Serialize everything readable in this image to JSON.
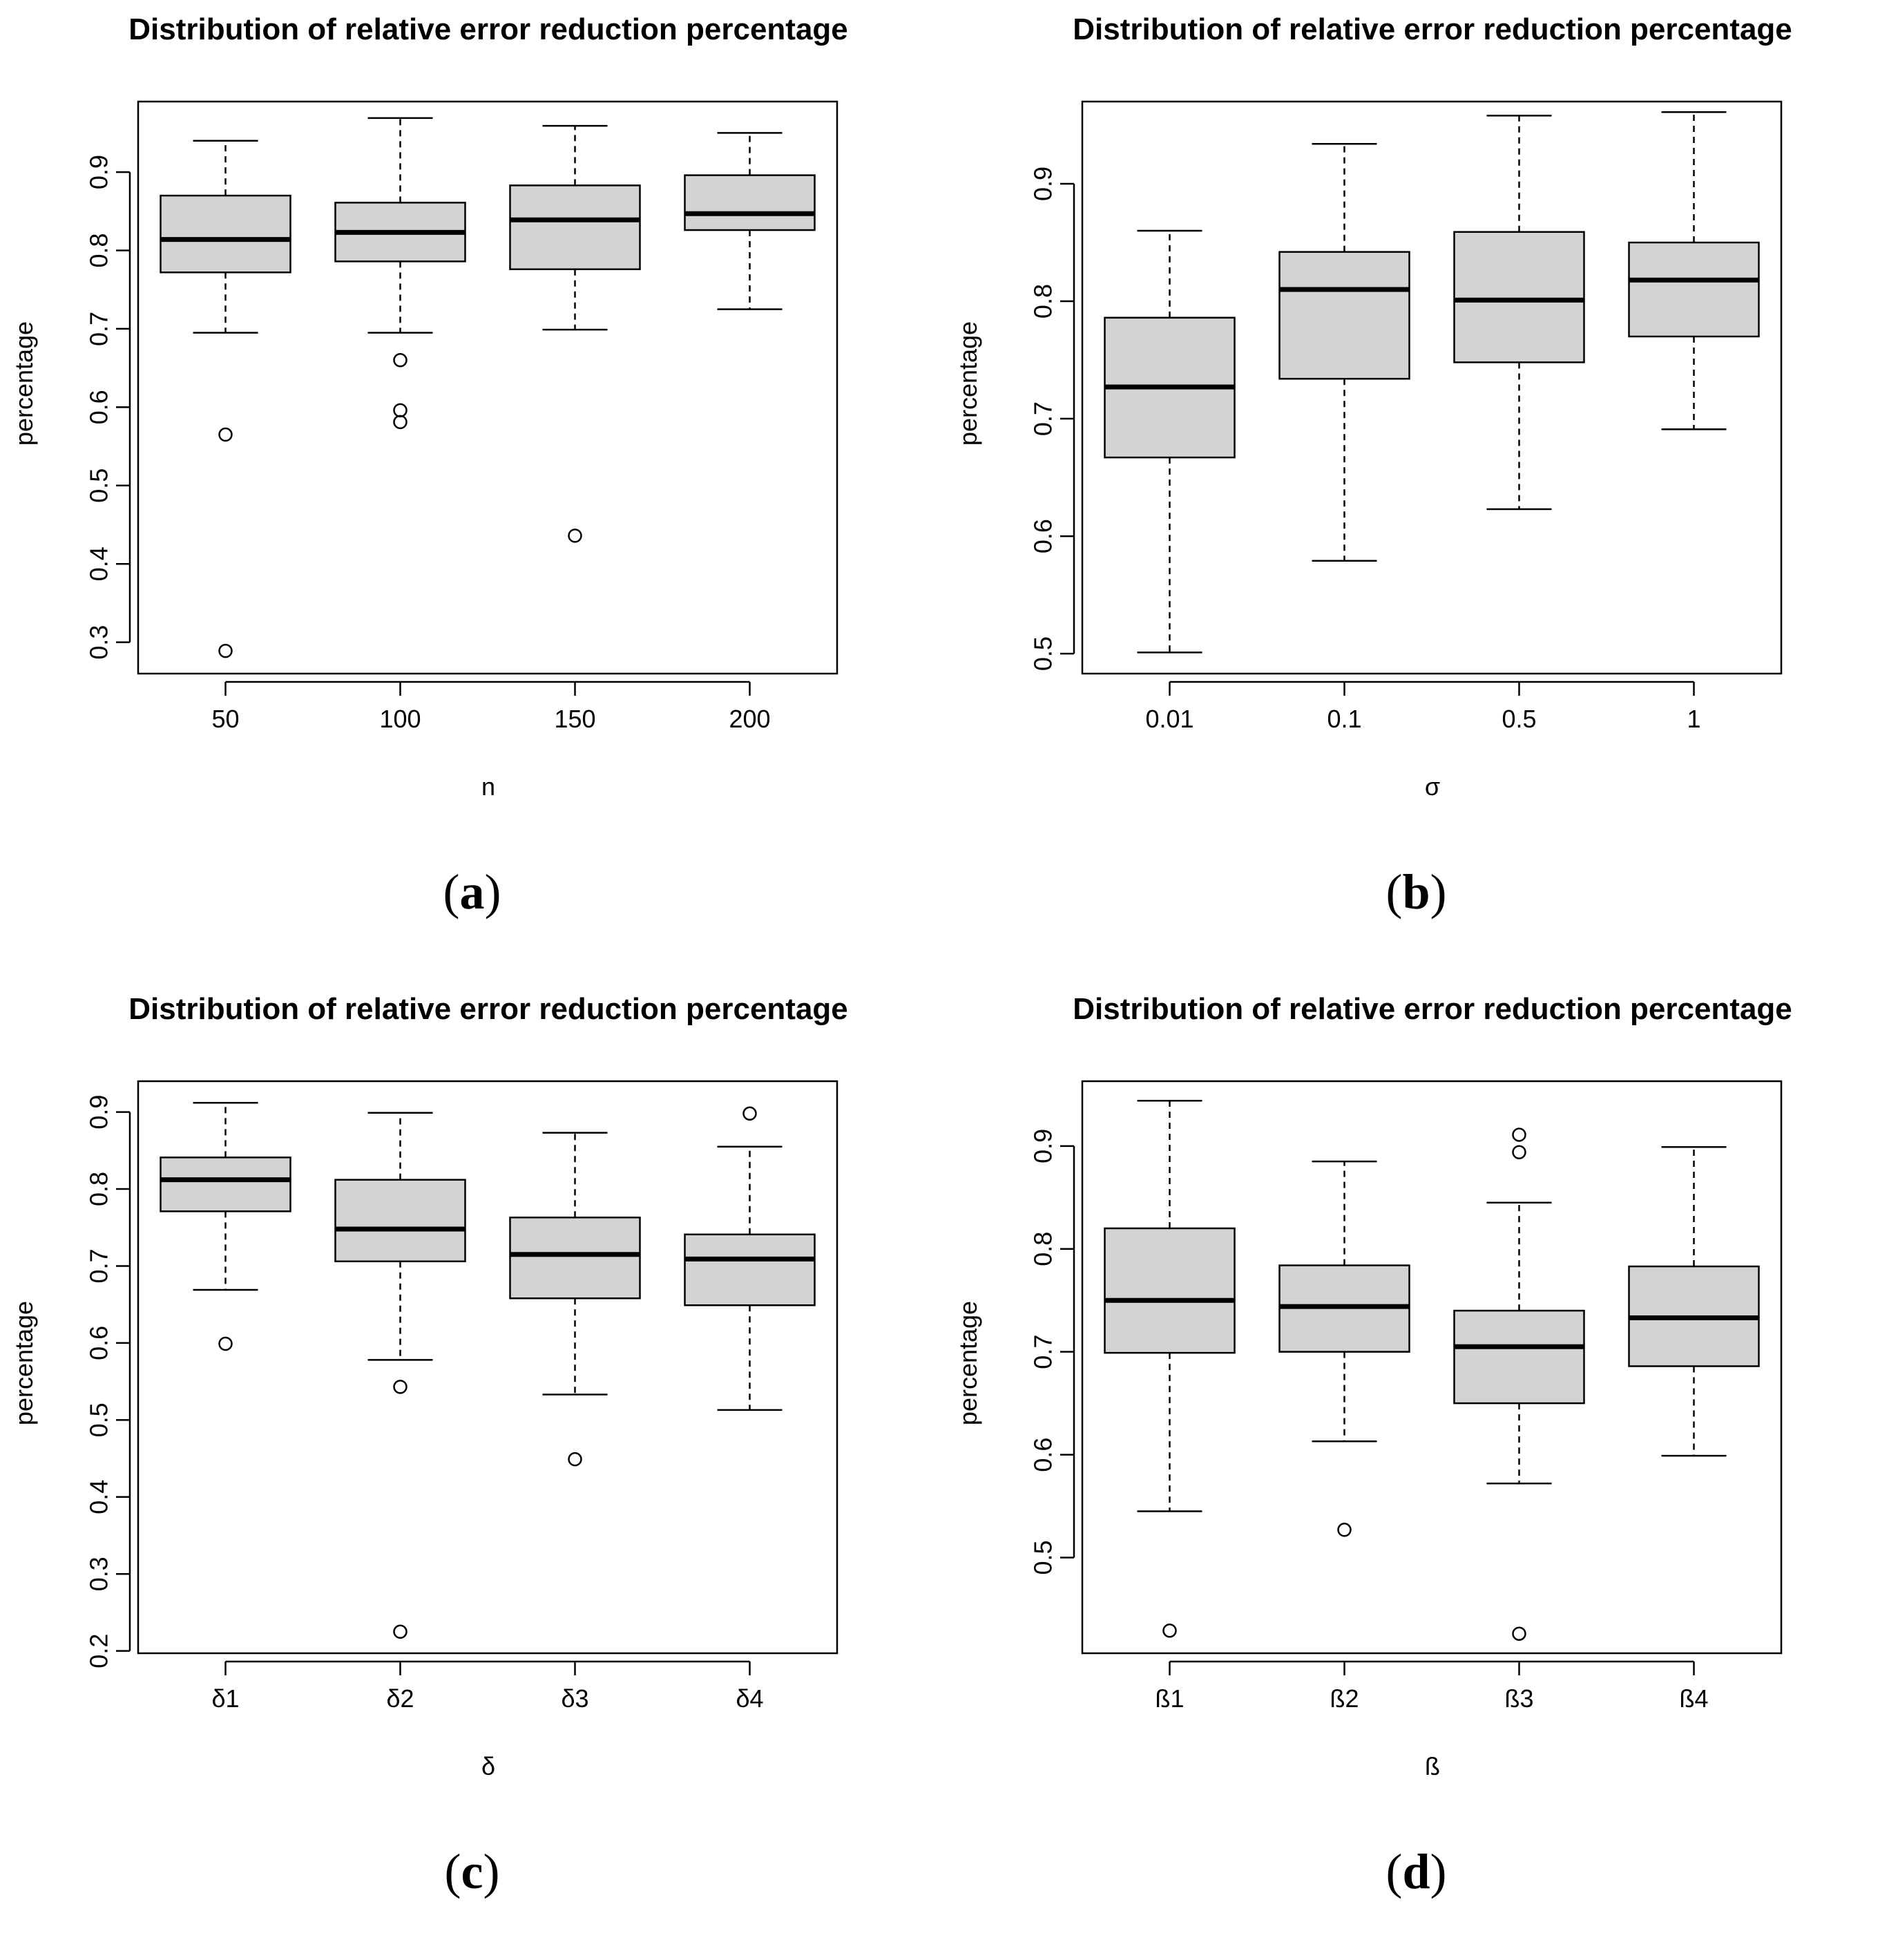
{
  "figure": {
    "captions": [
      "(a)",
      "(b)",
      "(c)",
      "(d)"
    ],
    "caption_letters": [
      "a",
      "b",
      "c",
      "d"
    ]
  },
  "chart_data": [
    {
      "type": "boxplot",
      "title": "Distribution of relative error reduction percentage",
      "xlabel": "n",
      "ylabel": "percentage",
      "categories": [
        "50",
        "100",
        "150",
        "200"
      ],
      "ylim": [
        0.26,
        0.99
      ],
      "yticks": [
        0.3,
        0.4,
        0.5,
        0.6,
        0.7,
        0.8,
        0.9
      ],
      "ytick_labels": [
        "0.3",
        "0.4",
        "0.5",
        "0.6",
        "0.7",
        "0.8",
        "0.9"
      ],
      "boxes": [
        {
          "whisker_low": 0.695,
          "q1": 0.772,
          "median": 0.814,
          "q3": 0.87,
          "whisker_high": 0.94,
          "outliers": [
            0.565,
            0.289
          ]
        },
        {
          "whisker_low": 0.695,
          "q1": 0.786,
          "median": 0.823,
          "q3": 0.861,
          "whisker_high": 0.969,
          "outliers": [
            0.66,
            0.596,
            0.581
          ]
        },
        {
          "whisker_low": 0.699,
          "q1": 0.776,
          "median": 0.839,
          "q3": 0.883,
          "whisker_high": 0.959,
          "outliers": [
            0.436
          ]
        },
        {
          "whisker_low": 0.725,
          "q1": 0.826,
          "median": 0.847,
          "q3": 0.896,
          "whisker_high": 0.95,
          "outliers": []
        }
      ]
    },
    {
      "type": "boxplot",
      "title": "Distribution of relative error reduction percentage",
      "xlabel": "σ",
      "ylabel": "percentage",
      "categories": [
        "0.01",
        "0.1",
        "0.5",
        "1"
      ],
      "ylim": [
        0.483,
        0.97
      ],
      "yticks": [
        0.5,
        0.6,
        0.7,
        0.8,
        0.9
      ],
      "ytick_labels": [
        "0.5",
        "0.6",
        "0.7",
        "0.8",
        "0.9"
      ],
      "boxes": [
        {
          "whisker_low": 0.501,
          "q1": 0.667,
          "median": 0.727,
          "q3": 0.786,
          "whisker_high": 0.86,
          "outliers": []
        },
        {
          "whisker_low": 0.579,
          "q1": 0.734,
          "median": 0.81,
          "q3": 0.842,
          "whisker_high": 0.934,
          "outliers": []
        },
        {
          "whisker_low": 0.623,
          "q1": 0.748,
          "median": 0.801,
          "q3": 0.859,
          "whisker_high": 0.958,
          "outliers": []
        },
        {
          "whisker_low": 0.691,
          "q1": 0.77,
          "median": 0.818,
          "q3": 0.85,
          "whisker_high": 0.961,
          "outliers": []
        }
      ]
    },
    {
      "type": "boxplot",
      "title": "Distribution of relative error reduction percentage",
      "xlabel": "δ",
      "ylabel": "percentage",
      "categories": [
        "δ1",
        "δ2",
        "δ3",
        "δ4"
      ],
      "ylim": [
        0.197,
        0.94
      ],
      "yticks": [
        0.2,
        0.3,
        0.4,
        0.5,
        0.6,
        0.7,
        0.8,
        0.9
      ],
      "ytick_labels": [
        "0.2",
        "0.3",
        "0.4",
        "0.5",
        "0.6",
        "0.7",
        "0.8",
        "0.9"
      ],
      "boxes": [
        {
          "whisker_low": 0.669,
          "q1": 0.771,
          "median": 0.812,
          "q3": 0.841,
          "whisker_high": 0.912,
          "outliers": [
            0.599
          ]
        },
        {
          "whisker_low": 0.578,
          "q1": 0.706,
          "median": 0.748,
          "q3": 0.812,
          "whisker_high": 0.899,
          "outliers": [
            0.543,
            0.225
          ]
        },
        {
          "whisker_low": 0.533,
          "q1": 0.658,
          "median": 0.715,
          "q3": 0.763,
          "whisker_high": 0.873,
          "outliers": [
            0.449
          ]
        },
        {
          "whisker_low": 0.513,
          "q1": 0.649,
          "median": 0.709,
          "q3": 0.741,
          "whisker_high": 0.855,
          "outliers": [
            0.898
          ]
        }
      ]
    },
    {
      "type": "boxplot",
      "title": "Distribution of relative error reduction percentage",
      "xlabel": "ß",
      "ylabel": "percentage",
      "categories": [
        "ß1",
        "ß2",
        "ß3",
        "ß4"
      ],
      "ylim": [
        0.407,
        0.963
      ],
      "yticks": [
        0.5,
        0.6,
        0.7,
        0.8,
        0.9
      ],
      "ytick_labels": [
        "0.5",
        "0.6",
        "0.7",
        "0.8",
        "0.9"
      ],
      "boxes": [
        {
          "whisker_low": 0.545,
          "q1": 0.699,
          "median": 0.75,
          "q3": 0.82,
          "whisker_high": 0.944,
          "outliers": [
            0.429
          ]
        },
        {
          "whisker_low": 0.613,
          "q1": 0.7,
          "median": 0.744,
          "q3": 0.784,
          "whisker_high": 0.885,
          "outliers": [
            0.527
          ]
        },
        {
          "whisker_low": 0.572,
          "q1": 0.65,
          "median": 0.705,
          "q3": 0.74,
          "whisker_high": 0.845,
          "outliers": [
            0.911,
            0.894,
            0.426
          ]
        },
        {
          "whisker_low": 0.599,
          "q1": 0.686,
          "median": 0.733,
          "q3": 0.783,
          "whisker_high": 0.899,
          "outliers": []
        }
      ]
    }
  ]
}
